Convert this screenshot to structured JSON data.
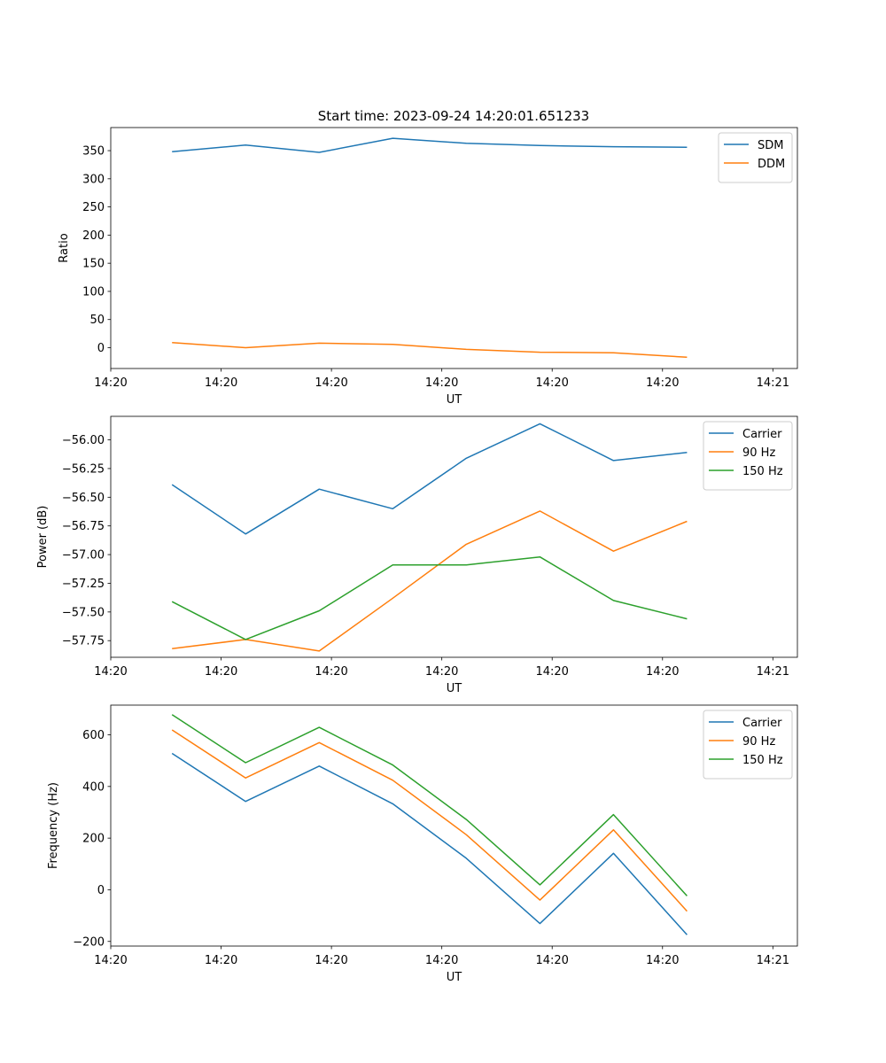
{
  "figure": {
    "title": "Start time: 2023-09-24 14:20:01.651233"
  },
  "chart_data": [
    {
      "type": "line",
      "xlabel": "UT",
      "ylabel": "Ratio",
      "x": [
        0.5,
        1.1,
        1.7,
        2.3,
        2.9,
        3.5,
        4.1,
        4.7
      ],
      "xlim": [
        0,
        5.6
      ],
      "xticks": [
        0,
        0.9,
        1.8,
        2.7,
        3.6,
        4.5,
        5.4
      ],
      "xticklabels": [
        "14:20",
        "14:20",
        "14:20",
        "14:20",
        "14:20",
        "14:20",
        "14:21"
      ],
      "ylim": [
        -37,
        391
      ],
      "yticks": [
        0,
        50,
        100,
        150,
        200,
        250,
        300,
        350
      ],
      "yticklabels": [
        "0",
        "50",
        "100",
        "150",
        "200",
        "250",
        "300",
        "350"
      ],
      "legend_position": "top-right",
      "series": [
        {
          "name": "SDM",
          "color": "#1f77b4",
          "values": [
            348,
            360,
            347,
            372,
            363,
            359,
            357,
            356
          ]
        },
        {
          "name": "DDM",
          "color": "#ff7f0e",
          "values": [
            9,
            0,
            8,
            6,
            -3,
            -8,
            -9,
            -17
          ]
        }
      ]
    },
    {
      "type": "line",
      "xlabel": "UT",
      "ylabel": "Power (dB)",
      "x": [
        0.5,
        1.1,
        1.7,
        2.3,
        2.9,
        3.5,
        4.1,
        4.7
      ],
      "xlim": [
        0,
        5.6
      ],
      "xticks": [
        0,
        0.9,
        1.8,
        2.7,
        3.6,
        4.5,
        5.4
      ],
      "xticklabels": [
        "14:20",
        "14:20",
        "14:20",
        "14:20",
        "14:20",
        "14:20",
        "14:21"
      ],
      "ylim": [
        -57.895,
        -55.795
      ],
      "yticks": [
        -57.75,
        -57.5,
        -57.25,
        -57.0,
        -56.75,
        -56.5,
        -56.25,
        -56.0
      ],
      "yticklabels": [
        "−57.75",
        "−57.50",
        "−57.25",
        "−57.00",
        "−56.75",
        "−56.50",
        "−56.25",
        "−56.00"
      ],
      "legend_position": "top-right",
      "series": [
        {
          "name": "Carrier",
          "color": "#1f77b4",
          "values": [
            -56.39,
            -56.82,
            -56.43,
            -56.6,
            -56.16,
            -55.86,
            -56.18,
            -56.11
          ]
        },
        {
          "name": "90 Hz",
          "color": "#ff7f0e",
          "values": [
            -57.82,
            -57.74,
            -57.84,
            -57.38,
            -56.91,
            -56.62,
            -56.97,
            -56.71
          ]
        },
        {
          "name": "150 Hz",
          "color": "#2ca02c",
          "values": [
            -57.41,
            -57.74,
            -57.49,
            -57.09,
            -57.09,
            -57.02,
            -57.4,
            -57.56
          ]
        }
      ]
    },
    {
      "type": "line",
      "xlabel": "UT",
      "ylabel": "Frequency (Hz)",
      "x": [
        0.5,
        1.1,
        1.7,
        2.3,
        2.9,
        3.5,
        4.1,
        4.7
      ],
      "xlim": [
        0,
        5.6
      ],
      "xticks": [
        0,
        0.9,
        1.8,
        2.7,
        3.6,
        4.5,
        5.4
      ],
      "xticklabels": [
        "14:20",
        "14:20",
        "14:20",
        "14:20",
        "14:20",
        "14:20",
        "14:21"
      ],
      "ylim": [
        -218,
        715
      ],
      "yticks": [
        -200,
        0,
        200,
        400,
        600
      ],
      "yticklabels": [
        "−200",
        "0",
        "200",
        "400",
        "600"
      ],
      "legend_position": "top-right",
      "series": [
        {
          "name": "Carrier",
          "color": "#1f77b4",
          "values": [
            528,
            342,
            479,
            333,
            122,
            -131,
            141,
            -174
          ]
        },
        {
          "name": "90 Hz",
          "color": "#ff7f0e",
          "values": [
            619,
            433,
            570,
            424,
            213,
            -40,
            232,
            -83
          ]
        },
        {
          "name": "150 Hz",
          "color": "#2ca02c",
          "values": [
            678,
            492,
            629,
            483,
            272,
            19,
            291,
            -24
          ]
        }
      ]
    }
  ]
}
